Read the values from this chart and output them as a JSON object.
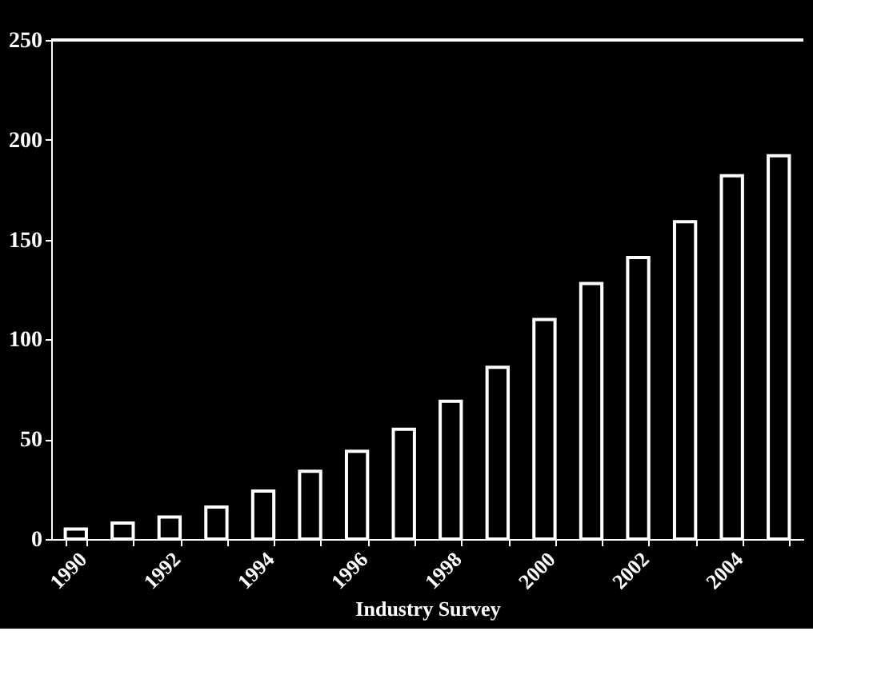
{
  "chart_data": {
    "type": "bar",
    "xlabel": "Industry Survey",
    "categories": [
      "1990",
      null,
      "1992",
      null,
      "1994",
      null,
      "1996",
      null,
      "1998",
      null,
      "2000",
      null,
      "2002",
      null,
      "2004",
      null
    ],
    "values": [
      5,
      8,
      11,
      16,
      24,
      34,
      44,
      55,
      69,
      86,
      110,
      128,
      141,
      159,
      182,
      192
    ],
    "color": "#ffffff",
    "ylim": [
      0,
      250
    ],
    "yticks": [
      0,
      50,
      100,
      150,
      200,
      250
    ],
    "grid": false
  }
}
